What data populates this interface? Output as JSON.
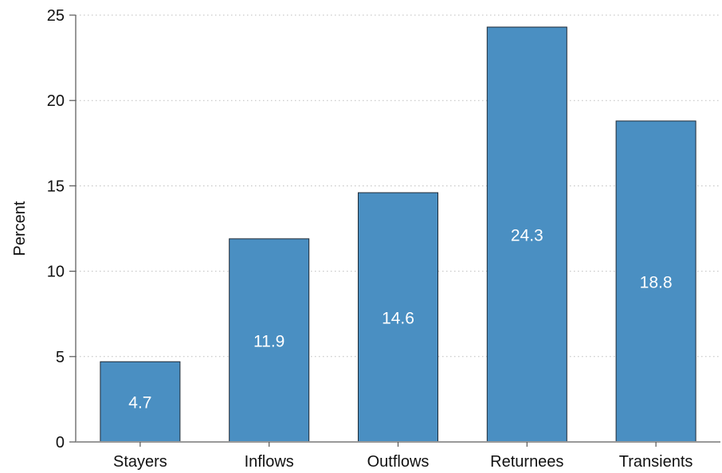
{
  "chart_data": {
    "type": "bar",
    "categories": [
      "Stayers",
      "Inflows",
      "Outflows",
      "Returnees",
      "Transients"
    ],
    "values": [
      4.7,
      11.9,
      14.6,
      24.3,
      18.8
    ],
    "data_labels": [
      "4.7",
      "11.9",
      "14.6",
      "24.3",
      "18.8"
    ],
    "ylabel": "Percent",
    "xlabel": "",
    "ylim": [
      0,
      25
    ],
    "yticks": [
      0,
      5,
      10,
      15,
      20,
      25
    ],
    "ytick_labels": [
      "0",
      "5",
      "10",
      "15",
      "20",
      "25"
    ],
    "grid": "horizontal-dotted",
    "bar_color": "#4a8fc2",
    "legend": "none"
  }
}
